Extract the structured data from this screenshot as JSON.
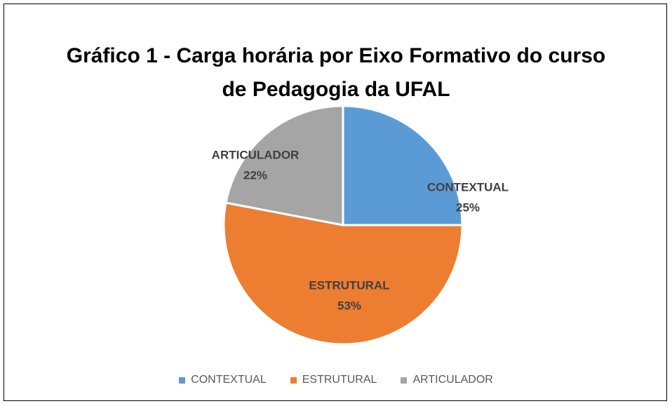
{
  "chart_data": {
    "type": "pie",
    "title": "Gráfico 1 - Carga horária por Eixo Formativo do curso de Pedagogia da UFAL",
    "categories": [
      "CONTEXTUAL",
      "ESTRUTURAL",
      "ARTICULADOR"
    ],
    "values": [
      25,
      53,
      22
    ],
    "value_labels": [
      "25%",
      "53%",
      "22%"
    ],
    "colors": [
      "#5b9bd5",
      "#ed7d31",
      "#a5a5a5"
    ],
    "legend": "bottom"
  }
}
